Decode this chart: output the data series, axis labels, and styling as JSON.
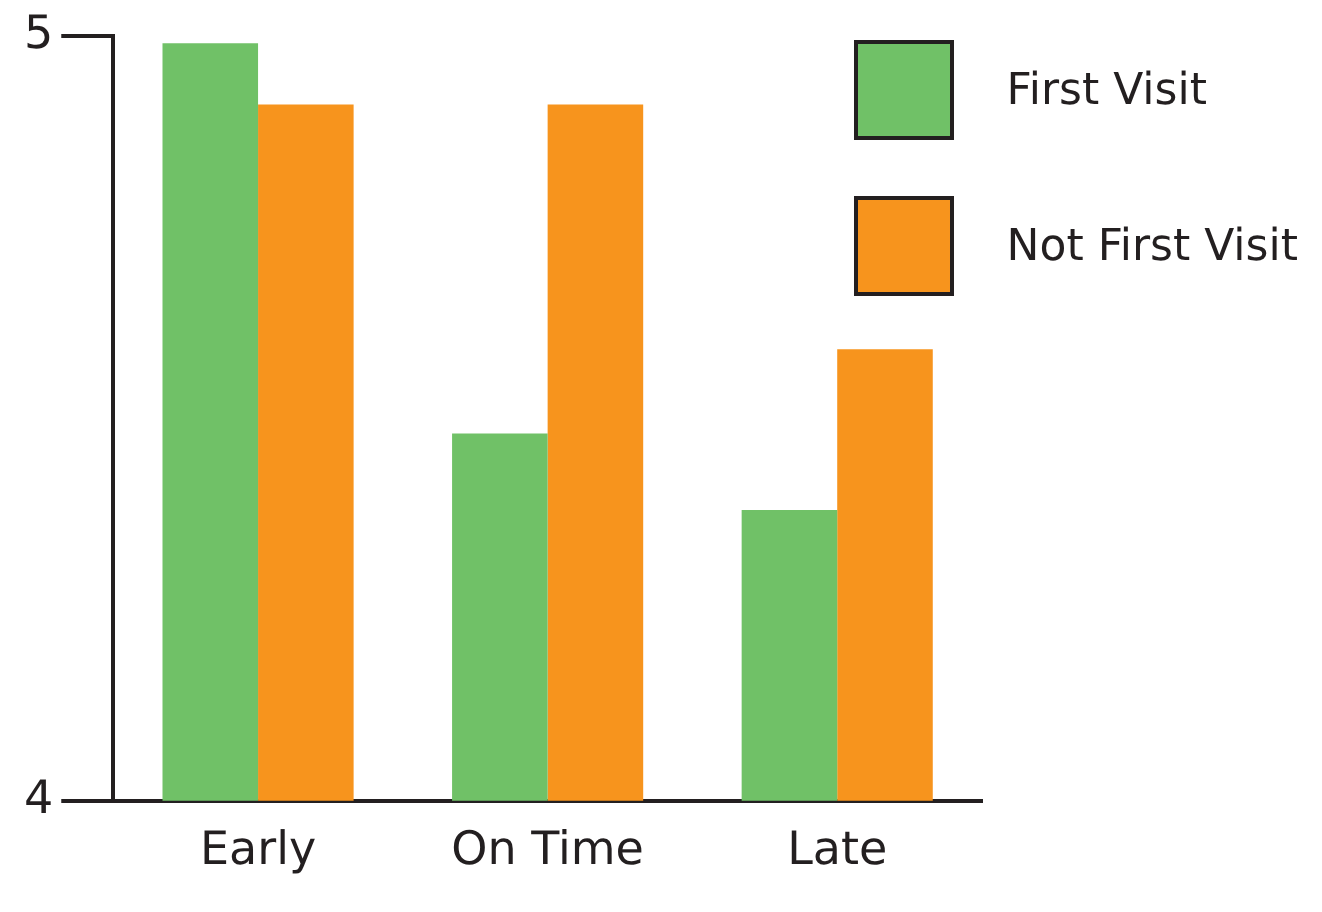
{
  "chart_data": {
    "type": "bar",
    "categories": [
      "Early",
      "On Time",
      "Late"
    ],
    "series": [
      {
        "name": "First Visit",
        "color": "#70c167",
        "values": [
          4.99,
          4.48,
          4.38
        ]
      },
      {
        "name": "Not First Visit",
        "color": "#f7941d",
        "values": [
          4.91,
          4.91,
          4.59
        ]
      }
    ],
    "ylim": [
      4,
      5
    ],
    "yticks": [
      4,
      5
    ],
    "grid": false,
    "legend": "top right"
  }
}
